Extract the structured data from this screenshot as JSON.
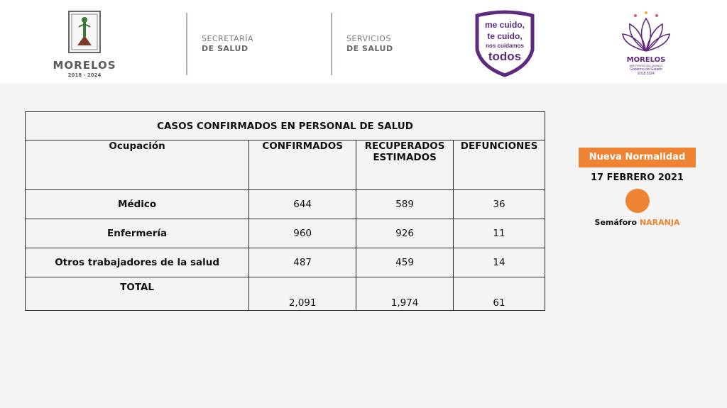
{
  "header": {
    "state_logo": {
      "name": "MORELOS",
      "years": "2018 - 2024"
    },
    "org1": {
      "line1": "SECRETARÍA",
      "line2": "DE SALUD"
    },
    "org2": {
      "line1": "SERVICIOS",
      "line2": "DE SALUD"
    },
    "badge": {
      "line1": "me cuido,",
      "line2": "te cuido,",
      "line3": "nos cuidamos",
      "line4": "todos"
    },
    "gov_logo": {
      "name": "MORELOS",
      "tagline": "ANFITRIÓN DEL MUNDO",
      "gov": "Gobierno del Estado",
      "years": "2018 2024"
    }
  },
  "table": {
    "title": "CASOS CONFIRMADOS EN PERSONAL DE SALUD",
    "headers": [
      "Ocupación",
      "CONFIRMADOS",
      "RECUPERADOS ESTIMADOS",
      "DEFUNCIONES"
    ],
    "rows": [
      {
        "label": "Médico",
        "confirmados": "644",
        "recuperados": "589",
        "defunciones": "36"
      },
      {
        "label": "Enfermería",
        "confirmados": "960",
        "recuperados": "926",
        "defunciones": "11"
      },
      {
        "label": "Otros trabajadores de la salud",
        "confirmados": "487",
        "recuperados": "459",
        "defunciones": "14"
      }
    ],
    "total": {
      "label": "TOTAL",
      "confirmados": "2,091",
      "recuperados": "1,974",
      "defunciones": "61"
    }
  },
  "status": {
    "title": "Nueva Normalidad",
    "date": "17 FEBRERO 2021",
    "semaforo_label": "Semáforo",
    "semaforo_value": "NARANJA",
    "semaforo_color": "#ee8333"
  },
  "colors": {
    "purple": "#5d2a80",
    "orange": "#ee8333"
  }
}
